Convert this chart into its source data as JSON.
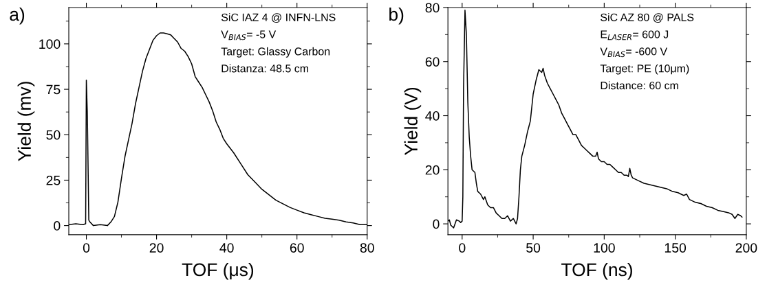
{
  "chart_data": [
    {
      "type": "line",
      "title": "a)",
      "xlabel": "TOF (μs)",
      "ylabel": "Yield (mv)",
      "annotations": [
        "SiC IAZ 4 @ INFN-LNS",
        "V$_{BIAS}$= -5 V",
        "Target: Glassy Carbon",
        "Distanza: 48.5 cm"
      ],
      "xlim": [
        -5,
        80
      ],
      "xticks": [
        0,
        20,
        40,
        60,
        80
      ],
      "ylim": [
        -5,
        120
      ],
      "yticks": [
        0,
        25,
        50,
        75,
        100
      ],
      "grid": false,
      "legend": false,
      "marker": "none",
      "line_style": "solid",
      "series": [
        {
          "color": "#000000",
          "x": [
            -5,
            -3,
            -1,
            -0.2,
            0,
            0.3,
            0.7,
            1,
            2,
            4,
            6,
            7,
            8,
            9,
            10,
            11,
            12,
            13,
            14,
            15,
            16,
            17,
            18,
            19,
            20,
            21,
            22,
            23,
            24,
            25,
            26,
            27,
            28,
            29,
            30,
            31,
            32,
            33,
            34,
            35,
            36,
            37,
            38,
            39,
            40,
            42,
            44,
            46,
            48,
            50,
            52,
            54,
            56,
            58,
            60,
            62,
            64,
            66,
            68,
            70,
            72,
            74,
            76,
            78,
            80
          ],
          "values": [
            0.5,
            1,
            0.5,
            1,
            80,
            60,
            3,
            2,
            0,
            0.5,
            0,
            2,
            5,
            13,
            26,
            38,
            47,
            56,
            67,
            76,
            85,
            92,
            97,
            102,
            104.5,
            106,
            106,
            105.5,
            105,
            103,
            101,
            97.5,
            96,
            93,
            89,
            82,
            79,
            76,
            72,
            68,
            63,
            57,
            53,
            48,
            45,
            40,
            34,
            28,
            24,
            20,
            17,
            14,
            12,
            10,
            8.5,
            7,
            6,
            5,
            4,
            3.5,
            3,
            2,
            1.5,
            0.5,
            0.5
          ]
        }
      ]
    },
    {
      "type": "line",
      "title": "b)",
      "xlabel": "TOF (ns)",
      "ylabel": "Yield (V)",
      "annotations": [
        "SiC AZ 80 @ PALS",
        "E$_{LASER}$= 600 J",
        "V$_{BIAS}$= -600 V",
        "Target: PE (10μm)",
        "Distance: 60 cm"
      ],
      "xlim": [
        -10,
        200
      ],
      "xticks": [
        0,
        50,
        100,
        150,
        200
      ],
      "ylim": [
        -4,
        80
      ],
      "yticks": [
        0,
        20,
        40,
        60,
        80
      ],
      "grid": false,
      "legend": false,
      "marker": "none",
      "line_style": "solid",
      "series": [
        {
          "color": "#000000",
          "x": [
            -10,
            -9,
            -8,
            -6,
            -4,
            -2,
            -1,
            0,
            0.5,
            1,
            2,
            3,
            4,
            5,
            6,
            7,
            9,
            10,
            11,
            13,
            15,
            16,
            18,
            20,
            22,
            24,
            26,
            28,
            30,
            32,
            34,
            36,
            38,
            39,
            40,
            41,
            42,
            44,
            46,
            47,
            48,
            50,
            52,
            54,
            56,
            57,
            58,
            60,
            62,
            64,
            66,
            68,
            70,
            72,
            74,
            76,
            78,
            80,
            82,
            84,
            86,
            88,
            90,
            92,
            94,
            95,
            96,
            98,
            100,
            102,
            104,
            106,
            108,
            110,
            112,
            114,
            116,
            117,
            118,
            119,
            120,
            124,
            128,
            132,
            136,
            140,
            144,
            148,
            152,
            156,
            158,
            160,
            164,
            168,
            172,
            176,
            180,
            184,
            188,
            190,
            192,
            194,
            196,
            197
          ],
          "values": [
            1,
            1.5,
            -0.5,
            -1.5,
            1.5,
            1,
            0.5,
            1,
            10,
            50,
            79,
            70,
            45,
            32,
            25,
            20,
            19,
            15,
            12,
            11,
            9,
            10,
            7,
            6,
            6,
            4,
            3,
            2,
            2,
            3,
            1,
            2,
            0,
            2,
            10,
            20,
            25,
            29,
            34,
            36,
            38,
            48,
            53,
            57,
            56,
            57.5,
            55,
            52,
            50,
            48,
            46,
            44,
            41,
            39,
            37,
            35,
            33,
            33,
            31,
            29,
            28,
            27,
            26,
            25,
            25,
            26.5,
            24,
            23,
            23,
            22,
            22,
            21,
            20,
            19,
            19,
            18,
            18,
            17.5,
            20.5,
            18,
            17,
            16,
            15,
            14.5,
            14,
            13.5,
            13,
            12,
            11.5,
            10.5,
            11,
            9,
            8,
            7.5,
            6.5,
            6,
            5,
            4.5,
            4,
            3.5,
            2,
            3.5,
            3,
            2.5
          ]
        }
      ]
    }
  ]
}
